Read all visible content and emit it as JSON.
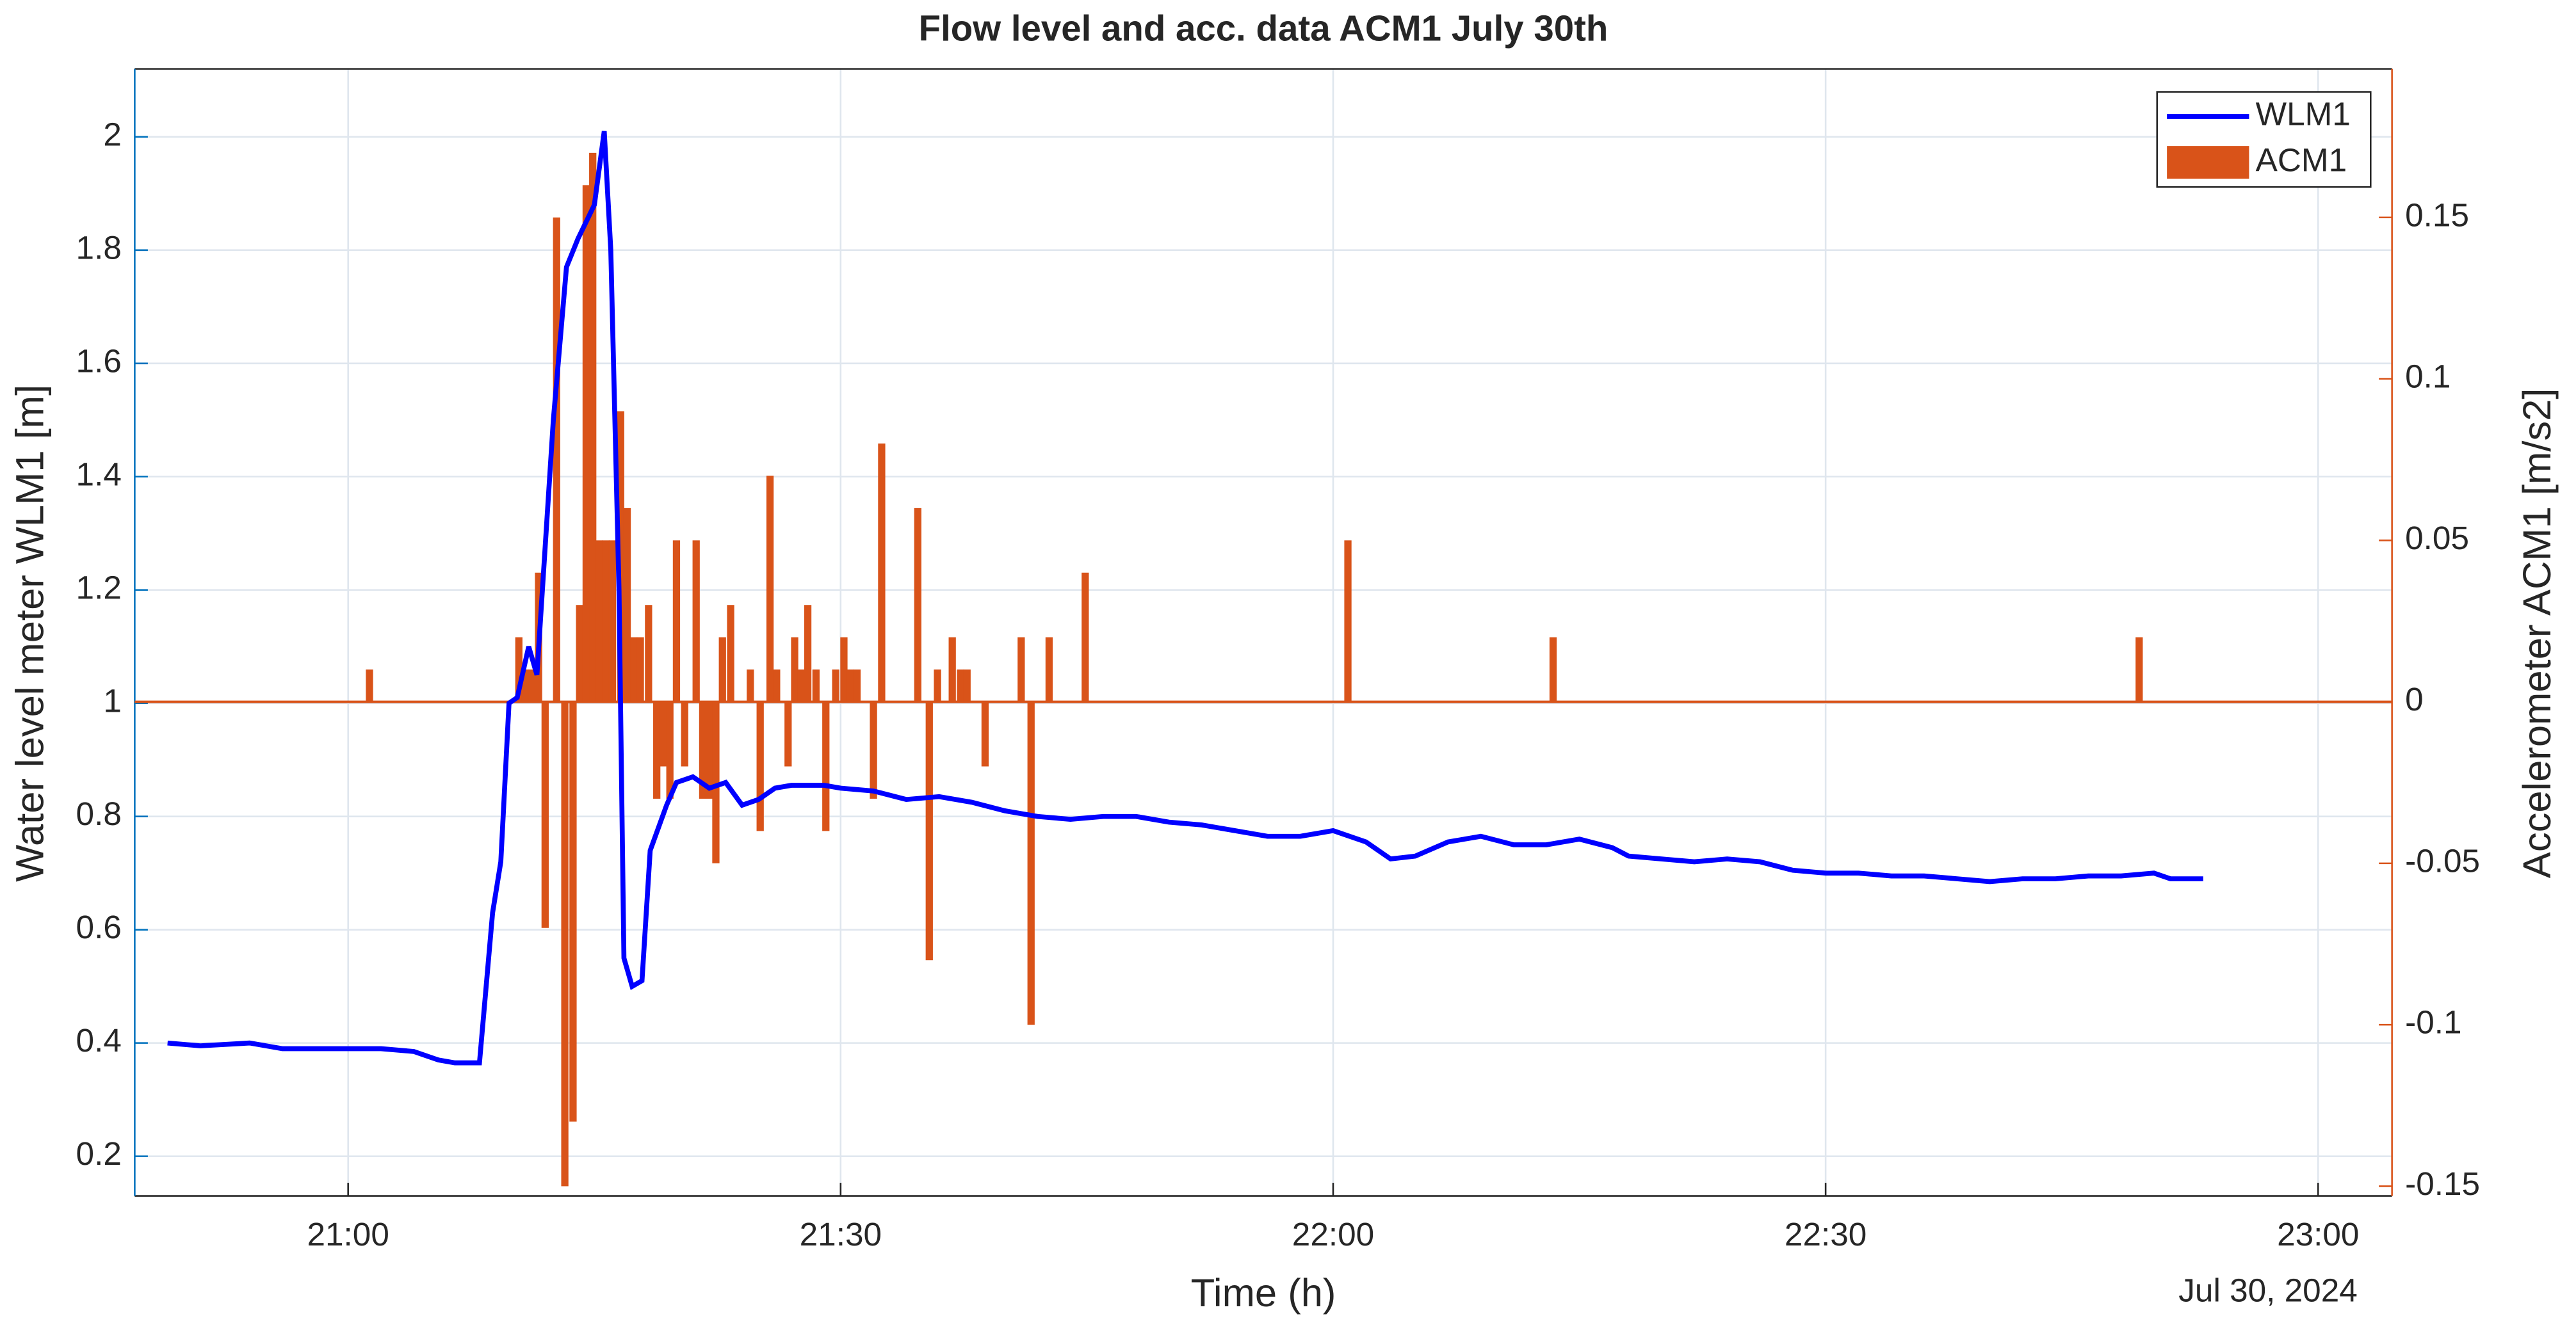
{
  "chart_data": {
    "type": "line",
    "title": "Flow level and acc. data ACM1 July 30th",
    "x_label": "Time (h)",
    "y_label": "Water level meter WLM1 [m]",
    "y2_label": "Accelerometer ACM1 [m/s2]",
    "annotation": "Jul 30, 2024",
    "xlim": [
      1247,
      1384.5
    ],
    "xticks": [
      {
        "value": 1260,
        "label": "21:00"
      },
      {
        "value": 1290,
        "label": "21:30"
      },
      {
        "value": 1320,
        "label": "22:00"
      },
      {
        "value": 1350,
        "label": "22:30"
      },
      {
        "value": 1380,
        "label": "23:00"
      }
    ],
    "ylim": [
      0.13,
      2.12
    ],
    "yticks": [
      0.2,
      0.4,
      0.6,
      0.8,
      1,
      1.2,
      1.4,
      1.6,
      1.8,
      2
    ],
    "y2lim": [
      -0.153,
      0.196
    ],
    "y2ticks": [
      -0.15,
      -0.1,
      -0.05,
      0,
      0.05,
      0.1,
      0.15
    ],
    "grid": true,
    "legend": "northeast",
    "y_color": "#0072bd",
    "y2_color": "#d95319",
    "series": [
      {
        "name": "WLM1",
        "type": "line",
        "color": "#0000ff",
        "x": [
          1249,
          1251,
          1254,
          1256,
          1258,
          1260,
          1262,
          1264,
          1265.5,
          1266.5,
          1268,
          1268.8,
          1269.3,
          1269.8,
          1270.3,
          1271,
          1271.5,
          1272.5,
          1273.3,
          1274,
          1275,
          1275.6,
          1276,
          1276.5,
          1276.8,
          1277.3,
          1277.9,
          1278.4,
          1279.4,
          1280,
          1281,
          1282,
          1283,
          1284,
          1285,
          1286,
          1287,
          1289,
          1290,
          1292,
          1294,
          1296,
          1298,
          1300,
          1302,
          1304,
          1306,
          1308,
          1310,
          1312,
          1314,
          1316,
          1318,
          1320,
          1322,
          1323.5,
          1325,
          1327,
          1329,
          1331,
          1333,
          1335,
          1337,
          1338,
          1340,
          1342,
          1344,
          1346,
          1348,
          1350,
          1352,
          1354,
          1356,
          1358,
          1360,
          1362,
          1364,
          1366,
          1368,
          1370,
          1371,
          1373
        ],
        "values": [
          0.4,
          0.395,
          0.4,
          0.39,
          0.39,
          0.39,
          0.39,
          0.385,
          0.37,
          0.365,
          0.365,
          0.63,
          0.72,
          1.0,
          1.01,
          1.1,
          1.05,
          1.5,
          1.77,
          1.82,
          1.88,
          2.01,
          1.8,
          1.2,
          0.55,
          0.5,
          0.51,
          0.74,
          0.82,
          0.86,
          0.87,
          0.85,
          0.86,
          0.82,
          0.83,
          0.85,
          0.855,
          0.855,
          0.85,
          0.845,
          0.83,
          0.835,
          0.825,
          0.81,
          0.8,
          0.795,
          0.8,
          0.8,
          0.79,
          0.785,
          0.775,
          0.765,
          0.765,
          0.775,
          0.755,
          0.725,
          0.73,
          0.755,
          0.765,
          0.75,
          0.75,
          0.76,
          0.745,
          0.73,
          0.725,
          0.72,
          0.725,
          0.72,
          0.705,
          0.7,
          0.7,
          0.695,
          0.695,
          0.69,
          0.685,
          0.69,
          0.69,
          0.695,
          0.695,
          0.7,
          0.69,
          0.69
        ]
      },
      {
        "name": "ACM1",
        "type": "bar",
        "axis": "y2",
        "color": "#d95319",
        "x": [
          1261.3,
          1270.4,
          1270.8,
          1271.2,
          1271.6,
          1272,
          1272.7,
          1273.2,
          1273.7,
          1274.1,
          1274.5,
          1274.9,
          1275.3,
          1275.7,
          1276.1,
          1276.6,
          1277,
          1277.4,
          1277.8,
          1278.3,
          1278.8,
          1279.2,
          1279.6,
          1280,
          1280.5,
          1281.2,
          1281.6,
          1282,
          1282.4,
          1282.8,
          1283.3,
          1284.5,
          1285.1,
          1285.7,
          1286.1,
          1286.8,
          1287.2,
          1287.6,
          1288,
          1288.5,
          1289.1,
          1289.7,
          1290.2,
          1290.6,
          1291,
          1292,
          1292.5,
          1294.7,
          1295.4,
          1295.9,
          1296.8,
          1297.3,
          1297.7,
          1298.8,
          1301,
          1301.6,
          1302.7,
          1304.9,
          1320.9,
          1333.4,
          1369.1
        ],
        "values": [
          0.01,
          0.02,
          0.01,
          0.01,
          0.04,
          -0.07,
          0.15,
          -0.15,
          -0.13,
          0.03,
          0.16,
          0.17,
          0.05,
          0.05,
          0.05,
          0.09,
          0.06,
          0.02,
          0.02,
          0.03,
          -0.03,
          -0.02,
          -0.03,
          0.05,
          -0.02,
          0.05,
          -0.03,
          -0.03,
          -0.05,
          0.02,
          0.03,
          0.01,
          -0.04,
          0.07,
          0.01,
          -0.02,
          0.02,
          0.01,
          0.03,
          0.01,
          -0.04,
          0.01,
          0.02,
          0.01,
          0.01,
          -0.03,
          0.08,
          0.06,
          -0.08,
          0.01,
          0.02,
          0.01,
          0.01,
          -0.02,
          0.02,
          -0.1,
          0.02,
          0.04,
          0.05,
          0.02,
          0.02
        ]
      }
    ]
  }
}
